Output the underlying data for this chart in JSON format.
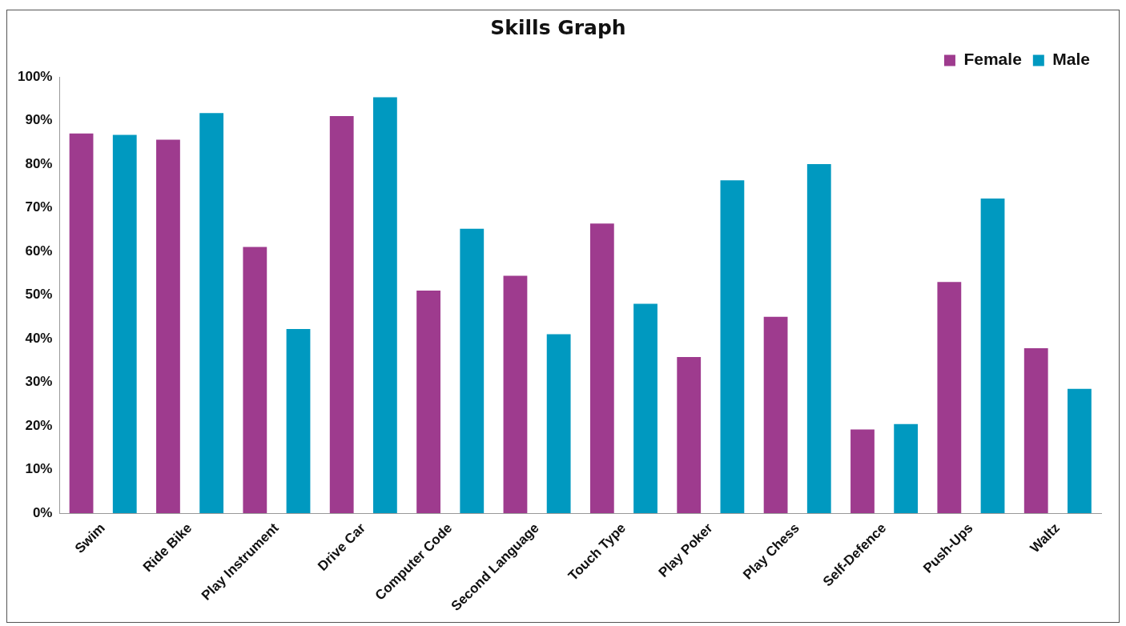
{
  "chart_data": {
    "type": "bar",
    "title": "Skills Graph",
    "categories": [
      "Swim",
      "Ride Bike",
      "Play Instrument",
      "Drive Car",
      "Computer Code",
      "Second Language",
      "Touch Type",
      "Play Poker",
      "Play Chess",
      "Self-Defence",
      "Push-Ups",
      "Waltz"
    ],
    "series": [
      {
        "name": "Female",
        "color": "#9e3b8e",
        "values": [
          87,
          85.6,
          61,
          91,
          51,
          54.4,
          66.4,
          35.8,
          45,
          19.2,
          53,
          37.8
        ]
      },
      {
        "name": "Male",
        "color": "#0099c0",
        "values": [
          86.7,
          91.7,
          42.2,
          95.3,
          65.2,
          41,
          48,
          76.3,
          80,
          20.4,
          72.1,
          28.5
        ]
      }
    ],
    "ylim": [
      0,
      100
    ],
    "yticks": [
      {
        "value": 0,
        "label": "0%"
      },
      {
        "value": 10,
        "label": "10%"
      },
      {
        "value": 20,
        "label": "20%"
      },
      {
        "value": 30,
        "label": "30%"
      },
      {
        "value": 40,
        "label": "40%"
      },
      {
        "value": 50,
        "label": "50%"
      },
      {
        "value": 60,
        "label": "60%"
      },
      {
        "value": 70,
        "label": "70%"
      },
      {
        "value": 80,
        "label": "80%"
      },
      {
        "value": 90,
        "label": "90%"
      },
      {
        "value": 100,
        "label": "100%"
      }
    ],
    "grid": false,
    "legend": "top right"
  }
}
